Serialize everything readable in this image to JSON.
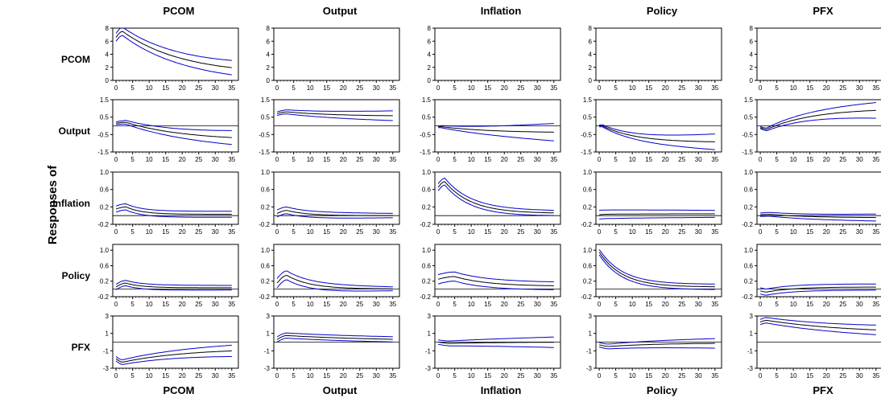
{
  "chart_data": {
    "type": "line",
    "title": "",
    "ylabel": "Responses of",
    "shock_labels": [
      "PCOM",
      "Output",
      "Inflation",
      "Policy",
      "PFX"
    ],
    "response_labels": [
      "PCOM",
      "Output",
      "Inflation",
      "Policy",
      "PFX"
    ],
    "x_ticks": [
      0,
      5,
      10,
      15,
      20,
      25,
      30,
      35
    ],
    "horizon": 35,
    "xlim": [
      -1,
      37
    ],
    "line_colors": {
      "response": "#000000",
      "bands": "#0000cc"
    },
    "rows": [
      {
        "response": "PCOM",
        "ylim": [
          0,
          8
        ],
        "yticks": [
          0,
          2,
          4,
          6,
          8
        ],
        "yticklabels": [
          "0",
          "2",
          "4",
          "6",
          "8"
        ],
        "zero_line": false
      },
      {
        "response": "Output",
        "ylim": [
          -1.5,
          1.5
        ],
        "yticks": [
          -1.5,
          -0.5,
          0.5,
          1.5
        ],
        "yticklabels": [
          "-1.5",
          "-0.5",
          "0.5",
          "1.5"
        ],
        "zero_line": true
      },
      {
        "response": "Inflation",
        "ylim": [
          -0.2,
          1.0
        ],
        "yticks": [
          -0.2,
          0.2,
          0.6,
          1.0
        ],
        "yticklabels": [
          "-0.2",
          "0.2",
          "0.6",
          "1.0"
        ],
        "zero_line": true
      },
      {
        "response": "Policy",
        "ylim": [
          -0.2,
          1.15
        ],
        "yticks": [
          -0.2,
          0.2,
          0.6,
          1.0
        ],
        "yticklabels": [
          "-0.2",
          "0.2",
          "0.6",
          "1.0"
        ],
        "zero_line": true
      },
      {
        "response": "PFX",
        "ylim": [
          -3,
          3
        ],
        "yticks": [
          -3,
          -1,
          1,
          3
        ],
        "yticklabels": [
          "-3",
          "-1",
          "1",
          "3"
        ],
        "zero_line": true
      }
    ],
    "panels": [
      [
        {
          "shape": "decay",
          "s": 6.6,
          "p": 7.5,
          "e": 0.9,
          "k": 2,
          "tau": 18,
          "w": 0.6,
          "we": 1.1
        },
        {
          "shape": "flat",
          "s": 0,
          "p": 0,
          "e": 0,
          "k": 0,
          "tau": 10,
          "w": 0,
          "we": 0
        },
        {
          "shape": "flat",
          "s": 0,
          "p": 0,
          "e": 0,
          "k": 0,
          "tau": 10,
          "w": 0,
          "we": 0
        },
        {
          "shape": "flat",
          "s": 0,
          "p": 0,
          "e": 0,
          "k": 0,
          "tau": 10,
          "w": 0,
          "we": 0
        },
        {
          "shape": "flat",
          "s": 0,
          "p": 0,
          "e": 0,
          "k": 0,
          "tau": 10,
          "w": 0,
          "we": 0
        }
      ],
      [
        {
          "shape": "decay",
          "s": 0.15,
          "p": 0.2,
          "e": -0.85,
          "k": 3,
          "tau": 18,
          "w": 0.08,
          "we": 0.4
        },
        {
          "shape": "decay",
          "s": 0.7,
          "p": 0.8,
          "e": 0.55,
          "k": 3,
          "tau": 15,
          "w": 0.1,
          "we": 0.28
        },
        {
          "shape": "decay",
          "s": -0.05,
          "p": -0.05,
          "e": -0.4,
          "k": 1,
          "tau": 15,
          "w": 0.05,
          "we": 0.5
        },
        {
          "shape": "decay",
          "s": 0.0,
          "p": 0.0,
          "e": -0.95,
          "k": 1,
          "tau": 10,
          "w": 0.05,
          "we": 0.45
        },
        {
          "shape": "decay",
          "s": -0.1,
          "p": -0.2,
          "e": 1.0,
          "k": 2,
          "tau": 14,
          "w": 0.06,
          "we": 0.45
        }
      ],
      [
        {
          "shape": "decay",
          "s": 0.15,
          "p": 0.2,
          "e": 0.03,
          "k": 3,
          "tau": 5,
          "w": 0.07,
          "we": 0.07
        },
        {
          "shape": "decay",
          "s": 0.05,
          "p": 0.12,
          "e": 0.0,
          "k": 3,
          "tau": 6,
          "w": 0.08,
          "we": 0.05
        },
        {
          "shape": "decay",
          "s": 0.65,
          "p": 0.78,
          "e": 0.05,
          "k": 2,
          "tau": 8,
          "w": 0.08,
          "we": 0.06
        },
        {
          "shape": "decay",
          "s": 0.02,
          "p": 0.03,
          "e": 0.04,
          "k": 2,
          "tau": 8,
          "w": 0.1,
          "we": 0.08
        },
        {
          "shape": "decay",
          "s": 0.02,
          "p": 0.03,
          "e": -0.05,
          "k": 3,
          "tau": 12,
          "w": 0.04,
          "we": 0.08
        }
      ],
      [
        {
          "shape": "decay",
          "s": 0.05,
          "p": 0.15,
          "e": 0.03,
          "k": 3,
          "tau": 5,
          "w": 0.07,
          "we": 0.06
        },
        {
          "shape": "decay",
          "s": 0.15,
          "p": 0.35,
          "e": 0.0,
          "k": 3,
          "tau": 7,
          "w": 0.12,
          "we": 0.05
        },
        {
          "shape": "decay",
          "s": 0.25,
          "p": 0.32,
          "e": 0.07,
          "k": 5,
          "tau": 10,
          "w": 0.12,
          "we": 0.1
        },
        {
          "shape": "decay",
          "s": 0.95,
          "p": 0.95,
          "e": 0.05,
          "k": 0,
          "tau": 7,
          "w": 0.07,
          "we": 0.07
        },
        {
          "shape": "decay",
          "s": -0.05,
          "p": -0.08,
          "e": 0.05,
          "k": 2,
          "tau": 8,
          "w": 0.08,
          "we": 0.08
        }
      ],
      [
        {
          "shape": "decay",
          "s": -1.9,
          "p": -2.3,
          "e": -0.7,
          "k": 2,
          "tau": 20,
          "w": 0.25,
          "we": 0.65
        },
        {
          "shape": "decay",
          "s": 0.3,
          "p": 0.75,
          "e": 0.1,
          "k": 3,
          "tau": 30,
          "w": 0.3,
          "we": 0.3
        },
        {
          "shape": "decay",
          "s": 0.0,
          "p": -0.15,
          "e": 0.0,
          "k": 4,
          "tau": 15,
          "w": 0.25,
          "we": 0.6
        },
        {
          "shape": "decay",
          "s": -0.3,
          "p": -0.5,
          "e": -0.1,
          "k": 3,
          "tau": 15,
          "w": 0.25,
          "we": 0.55
        },
        {
          "shape": "decay",
          "s": 2.3,
          "p": 2.5,
          "e": 1.0,
          "k": 2,
          "tau": 25,
          "w": 0.3,
          "we": 0.55
        }
      ]
    ]
  }
}
